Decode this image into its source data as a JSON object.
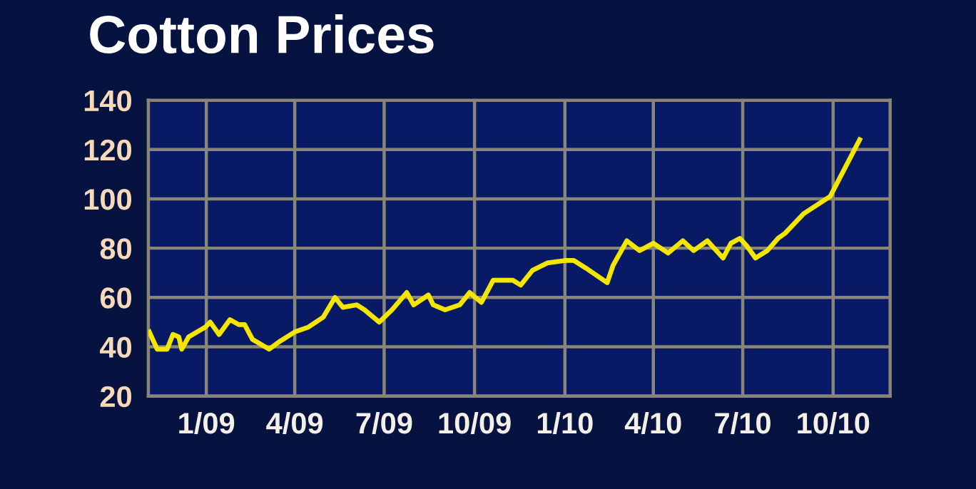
{
  "chart_data": {
    "type": "line",
    "title": "Cotton Prices",
    "x": [
      "2008-11-04",
      "2008-11-12",
      "2008-11-22",
      "2008-11-28",
      "2008-12-04",
      "2008-12-07",
      "2008-12-14",
      "2008-12-31",
      "2009-01-05",
      "2009-01-14",
      "2009-01-25",
      "2009-02-03",
      "2009-02-09",
      "2009-02-17",
      "2009-03-06",
      "2009-03-16",
      "2009-04-01",
      "2009-04-15",
      "2009-04-30",
      "2009-05-12",
      "2009-05-20",
      "2009-06-03",
      "2009-06-11",
      "2009-06-26",
      "2009-07-09",
      "2009-07-24",
      "2009-07-31",
      "2009-08-15",
      "2009-08-20",
      "2009-09-01",
      "2009-09-16",
      "2009-09-26",
      "2009-10-08",
      "2009-10-20",
      "2009-11-09",
      "2009-11-17",
      "2009-11-29",
      "2009-12-14",
      "2010-01-01",
      "2010-01-10",
      "2010-01-22",
      "2010-02-13",
      "2010-02-19",
      "2010-03-05",
      "2010-03-18",
      "2010-04-01",
      "2010-04-16",
      "2010-05-01",
      "2010-05-12",
      "2010-05-26",
      "2010-06-11",
      "2010-06-19",
      "2010-06-28",
      "2010-07-05",
      "2010-07-14",
      "2010-07-26",
      "2010-08-06",
      "2010-08-13",
      "2010-09-01",
      "2010-09-28",
      "2010-10-28"
    ],
    "series": [
      {
        "color": "#f5e600",
        "values": [
          46,
          39,
          39,
          45,
          44,
          39,
          44,
          48,
          50,
          45,
          51,
          49,
          49,
          43,
          39,
          42,
          46,
          48,
          52,
          60,
          56,
          57,
          55,
          50,
          55,
          62,
          57,
          61,
          57,
          55,
          57,
          62,
          58,
          67,
          67,
          65,
          71,
          74,
          75,
          75,
          72,
          66,
          73,
          83,
          79,
          82,
          78,
          83,
          79,
          83,
          76,
          82,
          84,
          81,
          76,
          79,
          84,
          86,
          94,
          101,
          124
        ]
      }
    ],
    "xlim": [
      "2008-11-03",
      "2010-11-28"
    ],
    "ylim": [
      20,
      140
    ],
    "xticks": [
      {
        "value": "2009-01-01",
        "label": "1/09"
      },
      {
        "value": "2009-04-01",
        "label": "4/09"
      },
      {
        "value": "2009-07-01",
        "label": "7/09"
      },
      {
        "value": "2009-10-01",
        "label": "10/09"
      },
      {
        "value": "2010-01-01",
        "label": "1/10"
      },
      {
        "value": "2010-04-01",
        "label": "4/10"
      },
      {
        "value": "2010-07-01",
        "label": "7/10"
      },
      {
        "value": "2010-10-01",
        "label": "10/10"
      }
    ],
    "yticks": [
      20,
      40,
      60,
      80,
      100,
      120,
      140
    ],
    "grid": true,
    "marker": "none",
    "line_style": "solid"
  }
}
